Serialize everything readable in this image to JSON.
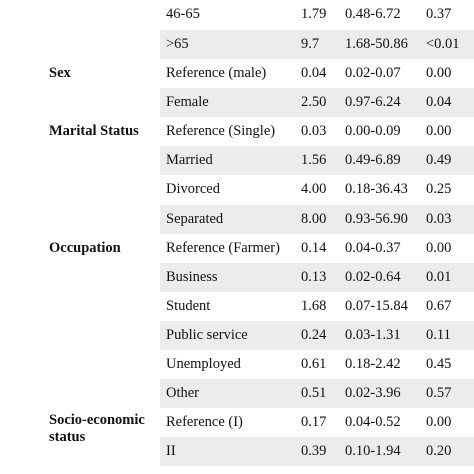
{
  "table": {
    "rows": [
      {
        "variable": "",
        "category": "46-65",
        "or": "1.79",
        "ci": "0.48-6.72",
        "p": "0.37"
      },
      {
        "variable": "",
        "category": ">65",
        "or": "9.7",
        "ci": "1.68-50.86",
        "p": "<0.01"
      },
      {
        "variable": "Sex",
        "category": "Reference (male)",
        "or": "0.04",
        "ci": "0.02-0.07",
        "p": "0.00"
      },
      {
        "variable": "",
        "category": "Female",
        "or": "2.50",
        "ci": "0.97-6.24",
        "p": "0.04"
      },
      {
        "variable": "Marital Status",
        "category": "Reference (Single)",
        "or": "0.03",
        "ci": "0.00-0.09",
        "p": "0.00"
      },
      {
        "variable": "",
        "category": "Married",
        "or": "1.56",
        "ci": "0.49-6.89",
        "p": "0.49"
      },
      {
        "variable": "",
        "category": "Divorced",
        "or": "4.00",
        "ci": "0.18-36.43",
        "p": "0.25"
      },
      {
        "variable": "",
        "category": "Separated",
        "or": "8.00",
        "ci": "0.93-56.90",
        "p": "0.03"
      },
      {
        "variable": "Occupation",
        "category": "Reference (Farmer)",
        "or": "0.14",
        "ci": "0.04-0.37",
        "p": "0.00"
      },
      {
        "variable": "",
        "category": "Business",
        "or": "0.13",
        "ci": "0.02-0.64",
        "p": "0.01"
      },
      {
        "variable": "",
        "category": "Student",
        "or": "1.68",
        "ci": "0.07-15.84",
        "p": "0.67"
      },
      {
        "variable": "",
        "category": "Public service",
        "or": "0.24",
        "ci": "0.03-1.31",
        "p": "0.11"
      },
      {
        "variable": "",
        "category": "Unemployed",
        "or": "0.61",
        "ci": "0.18-2.42",
        "p": "0.45"
      },
      {
        "variable": "",
        "category": "Other",
        "or": "0.51",
        "ci": "0.02-3.96",
        "p": "0.57"
      },
      {
        "variable": "Socio-economic status",
        "category": "Reference (I)",
        "or": "0.17",
        "ci": "0.04-0.52",
        "p": "0.00"
      },
      {
        "variable": "",
        "category": "II",
        "or": "0.39",
        "ci": "0.10-1.94",
        "p": "0.20"
      }
    ]
  }
}
